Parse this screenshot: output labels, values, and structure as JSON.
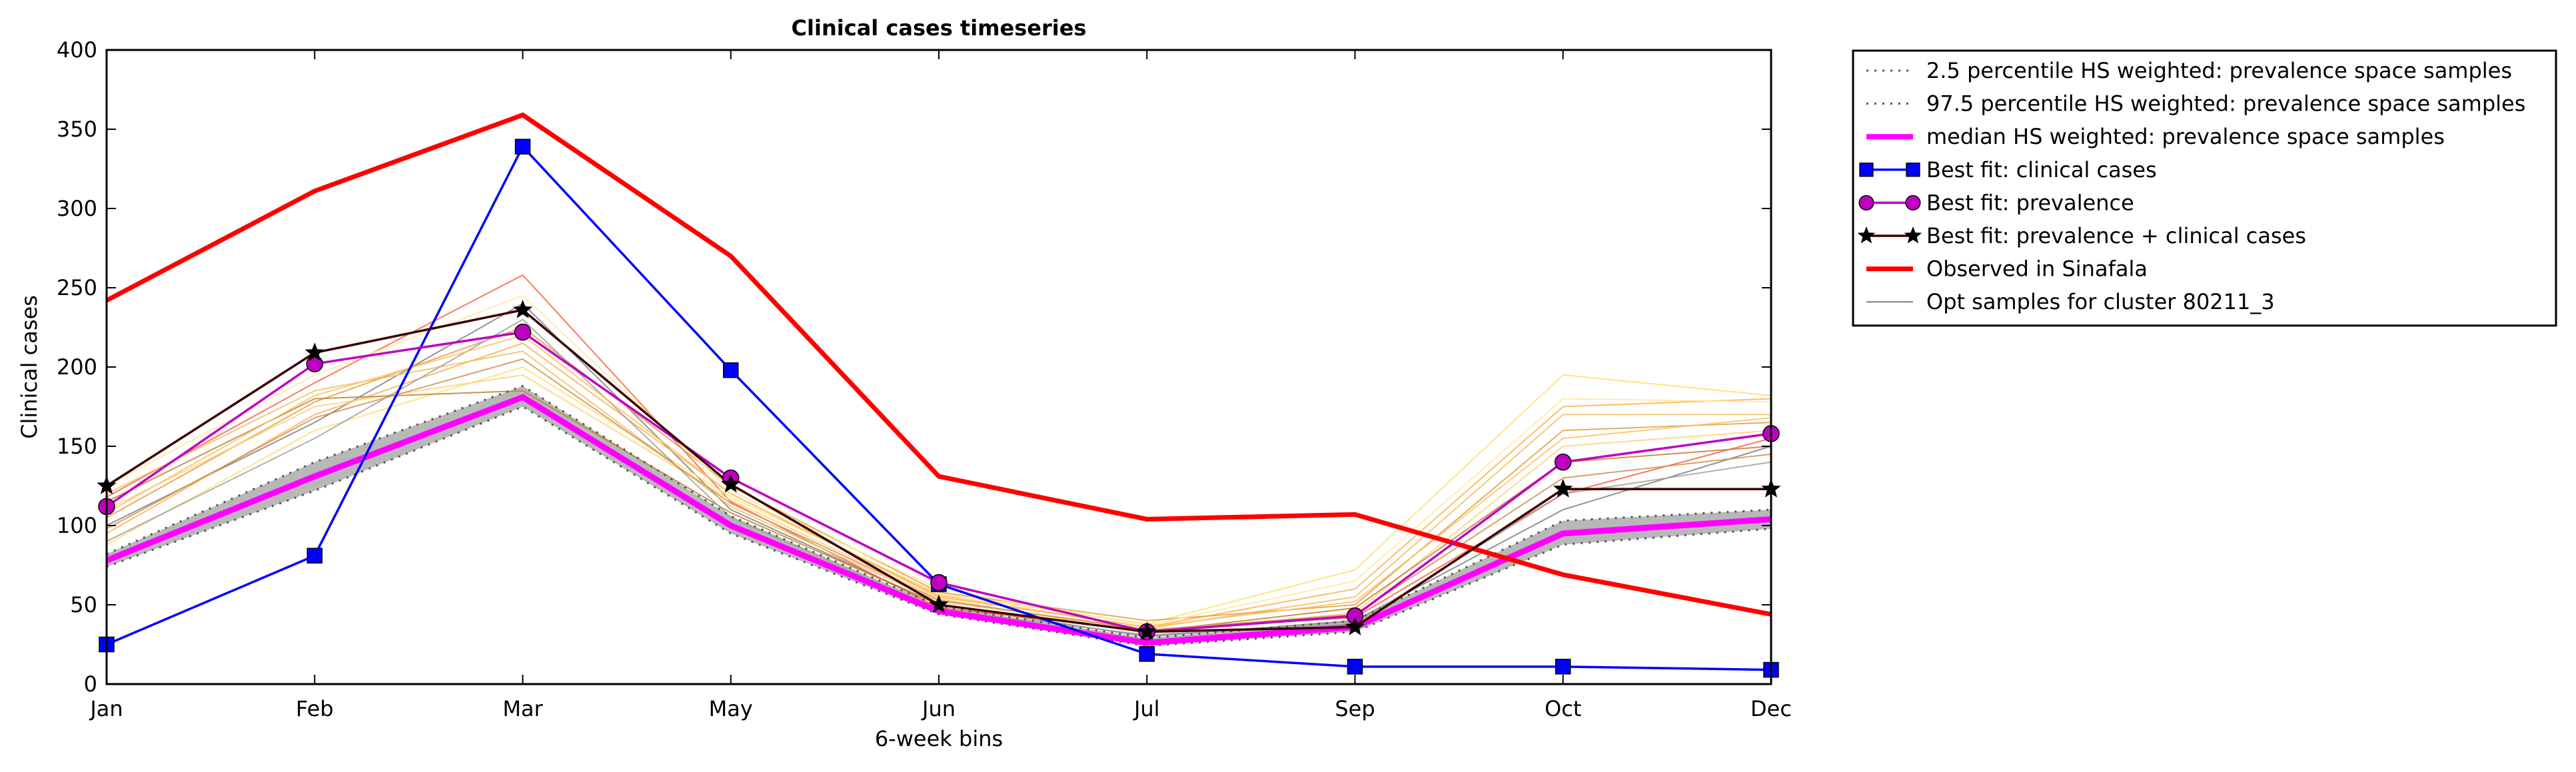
{
  "chart_data": {
    "type": "line",
    "title": "Clinical cases timeseries",
    "xlabel": "6-week bins",
    "ylabel": "Clinical cases",
    "categories": [
      "Jan",
      "Feb",
      "Mar",
      "May",
      "Jun",
      "Jul",
      "Sep",
      "Oct",
      "Dec"
    ],
    "ylim": [
      0,
      400
    ],
    "yticks": [
      "0",
      "50",
      "100",
      "150",
      "200",
      "250",
      "300",
      "350",
      "400"
    ],
    "grid": false,
    "legend_position": "outside-right",
    "band": {
      "lower": [
        74,
        122,
        175,
        95,
        44,
        24,
        33,
        88,
        98
      ],
      "upper": [
        82,
        140,
        188,
        106,
        49,
        29,
        40,
        103,
        110
      ],
      "color": "#b0b0b0"
    },
    "series": [
      {
        "name": "2.5 percentile HS weighted: prevalence space samples",
        "values": [
          74,
          122,
          175,
          95,
          44,
          24,
          33,
          88,
          98
        ],
        "color": "#555555",
        "style": "dotted",
        "marker": "none"
      },
      {
        "name": "97.5 percentile HS weighted: prevalence space samples",
        "values": [
          82,
          140,
          188,
          106,
          49,
          29,
          40,
          103,
          110
        ],
        "color": "#555555",
        "style": "dotted",
        "marker": "none"
      },
      {
        "name": "median HS weighted: prevalence space samples",
        "values": [
          78,
          131,
          181,
          100,
          46,
          26,
          36,
          95,
          104
        ],
        "color": "#ff00ff",
        "style": "solid",
        "width": 9,
        "marker": "none"
      },
      {
        "name": "Best fit: clinical cases",
        "values": [
          25,
          81,
          339,
          198,
          63,
          19,
          11,
          11,
          9
        ],
        "color": "#0000ff",
        "style": "solid",
        "width": 3.5,
        "marker": "square"
      },
      {
        "name": "Best fit: prevalence",
        "values": [
          112,
          202,
          222,
          130,
          64,
          33,
          43,
          140,
          158
        ],
        "color": "#c000c0",
        "style": "solid",
        "width": 3.5,
        "marker": "circle"
      },
      {
        "name": "Best fit: prevalence + clinical cases",
        "values": [
          125,
          209,
          236,
          126,
          50,
          33,
          36,
          123,
          123
        ],
        "color": "#3a0000",
        "style": "solid",
        "width": 3.5,
        "marker": "star"
      },
      {
        "name": "Observed in Sinafala",
        "values": [
          242,
          311,
          359,
          270,
          131,
          104,
          107,
          69,
          44
        ],
        "color": "#ff0000",
        "style": "solid",
        "width": 7,
        "marker": "none"
      },
      {
        "name": "Opt samples for cluster 80211_3",
        "values": [
          100,
          165,
          240,
          110,
          50,
          30,
          40,
          110,
          150
        ],
        "color": "#808080",
        "style": "solid",
        "width": 2,
        "marker": "none"
      }
    ],
    "opt_samples": [
      {
        "values": [
          100,
          165,
          240,
          110,
          50,
          30,
          40,
          110,
          150
        ],
        "color": "#808080"
      },
      {
        "values": [
          118,
          190,
          258,
          115,
          48,
          34,
          42,
          120,
          155
        ],
        "color": "#ff6040"
      },
      {
        "values": [
          95,
          170,
          215,
          120,
          55,
          36,
          60,
          175,
          180
        ],
        "color": "#ffb050"
      },
      {
        "values": [
          88,
          160,
          200,
          118,
          57,
          38,
          72,
          195,
          182
        ],
        "color": "#ffe070"
      },
      {
        "values": [
          120,
          185,
          210,
          112,
          52,
          35,
          55,
          170,
          170
        ],
        "color": "#f0c060"
      },
      {
        "values": [
          105,
          178,
          225,
          125,
          58,
          40,
          50,
          160,
          165
        ],
        "color": "#e0a040"
      },
      {
        "values": [
          110,
          175,
          195,
          116,
          54,
          32,
          45,
          150,
          160
        ],
        "color": "#ffd080"
      },
      {
        "values": [
          115,
          180,
          185,
          108,
          50,
          33,
          48,
          140,
          150
        ],
        "color": "#c08030"
      },
      {
        "values": [
          90,
          155,
          230,
          105,
          47,
          31,
          38,
          120,
          140
        ],
        "color": "#a0a0a0"
      },
      {
        "values": [
          125,
          195,
          245,
          122,
          60,
          37,
          65,
          180,
          178
        ],
        "color": "#ffe8a0"
      },
      {
        "values": [
          98,
          168,
          205,
          114,
          53,
          34,
          44,
          130,
          145
        ],
        "color": "#d09050"
      },
      {
        "values": [
          108,
          182,
          220,
          120,
          56,
          36,
          52,
          155,
          168
        ],
        "color": "#ffc060"
      }
    ]
  }
}
